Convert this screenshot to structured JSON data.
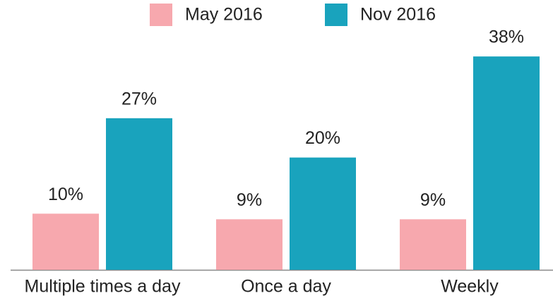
{
  "chart_data": {
    "type": "bar",
    "categories": [
      "Multiple times a day",
      "Once a day",
      "Weekly"
    ],
    "series": [
      {
        "name": "May 2016",
        "color": "#f7a8ae",
        "values": [
          10,
          9,
          9
        ],
        "value_labels": [
          "10%",
          "9%",
          "9%"
        ]
      },
      {
        "name": "Nov 2016",
        "color": "#19a3bd",
        "values": [
          27,
          20,
          38
        ],
        "value_labels": [
          "27%",
          "20%",
          "38%"
        ]
      }
    ]
  }
}
